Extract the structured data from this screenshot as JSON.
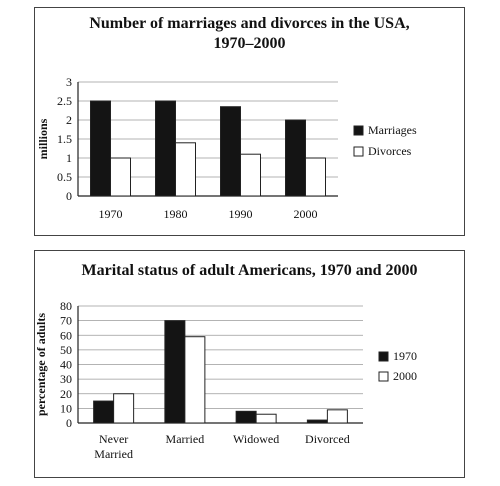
{
  "chart_data": [
    {
      "type": "bar",
      "title": "Number of marriages and divorces in the USA, 1970–2000",
      "title_lines": [
        "Number of marriages and divorces in the USA,",
        "1970–2000"
      ],
      "xlabel": "",
      "ylabel": "millions",
      "ylim": [
        0,
        3
      ],
      "yticks": [
        "0",
        "0.5",
        "1",
        "1.5",
        "2",
        "2.5",
        "3"
      ],
      "categories": [
        "1970",
        "1980",
        "1990",
        "2000"
      ],
      "series": [
        {
          "name": "Marriages",
          "values": [
            2.5,
            2.5,
            2.35,
            2.0
          ],
          "color": "#141414"
        },
        {
          "name": "Divorces",
          "values": [
            1.0,
            1.4,
            1.1,
            1.0
          ],
          "color": "#ffffff"
        }
      ],
      "grid": true,
      "legend": "right"
    },
    {
      "type": "bar",
      "title": "Marital status of adult Americans, 1970 and 2000",
      "xlabel": "",
      "ylabel": "percentage of adults",
      "ylim": [
        0,
        80
      ],
      "yticks": [
        "0",
        "10",
        "20",
        "30",
        "40",
        "50",
        "60",
        "70",
        "80"
      ],
      "categories": [
        "Never Married",
        "Married",
        "Widowed",
        "Divorced"
      ],
      "category_lines": [
        [
          "Never",
          "Married"
        ],
        [
          "Married"
        ],
        [
          "Widowed"
        ],
        [
          "Divorced"
        ]
      ],
      "series": [
        {
          "name": "1970",
          "values": [
            15,
            70,
            8,
            2
          ],
          "color": "#141414"
        },
        {
          "name": "2000",
          "values": [
            20,
            59,
            6,
            9
          ],
          "color": "#ffffff"
        }
      ],
      "grid": true,
      "legend": "right"
    }
  ]
}
